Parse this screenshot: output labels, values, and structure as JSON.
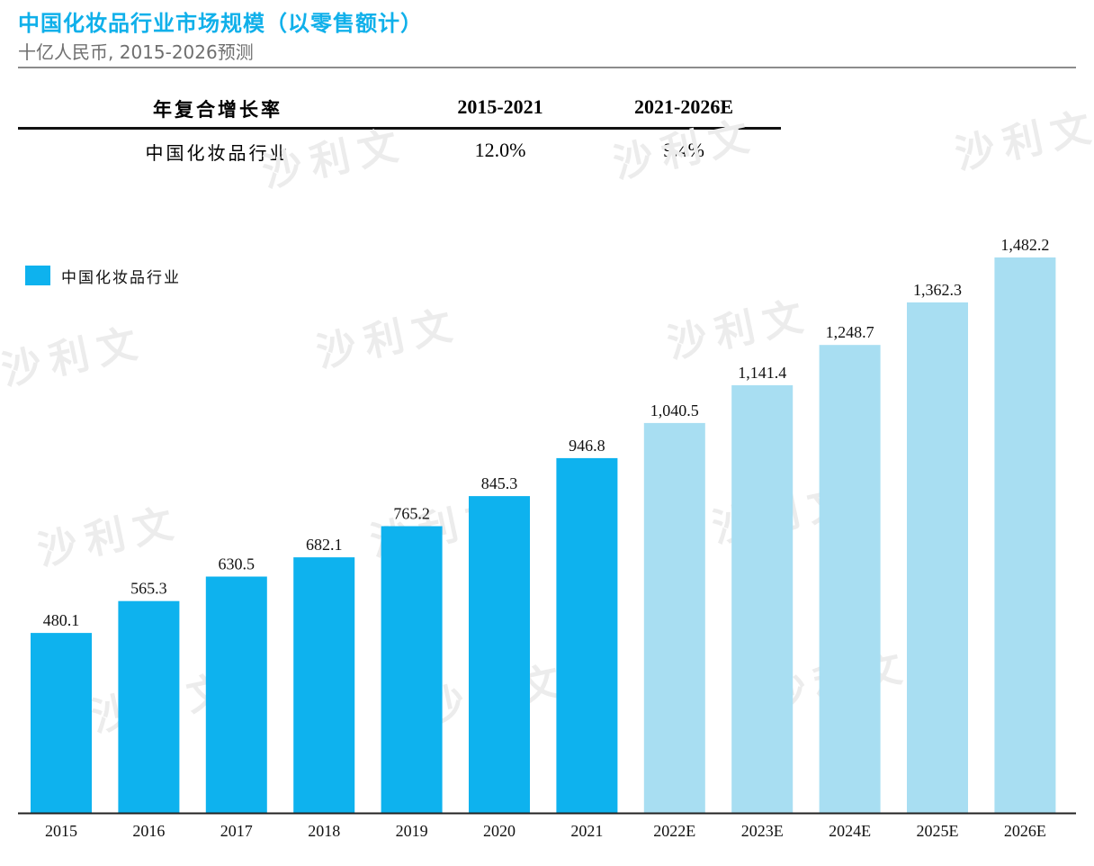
{
  "header": {
    "title": "中国化妆品行业市场规模（以零售额计）",
    "subtitle": "十亿人民币, 2015-2026预测"
  },
  "cagr_table": {
    "header_label": "年复合增长率",
    "col1": "2015-2021",
    "col2": "2021-2026E",
    "row_label": "中国化妆品行业",
    "row_val1": "12.0%",
    "row_val2": "9.4%"
  },
  "legend": {
    "label": "中国化妆品行业"
  },
  "watermark": {
    "text": "沙利文"
  },
  "colors": {
    "title": "#10b0ea",
    "actual": "#0eb2ee",
    "forecast": "#a8def2",
    "axis": "#222222"
  },
  "chart_data": {
    "type": "bar",
    "categories": [
      "2015",
      "2016",
      "2017",
      "2018",
      "2019",
      "2020",
      "2021",
      "2022E",
      "2023E",
      "2024E",
      "2025E",
      "2026E"
    ],
    "values": [
      480.1,
      565.3,
      630.5,
      682.1,
      765.2,
      845.3,
      946.8,
      1040.5,
      1141.4,
      1248.7,
      1362.3,
      1482.2
    ],
    "labels": [
      "480.1",
      "565.3",
      "630.5",
      "682.1",
      "765.2",
      "845.3",
      "946.8",
      "1,040.5",
      "1,141.4",
      "1,248.7",
      "1,362.3",
      "1,482.2"
    ],
    "forecast_from_index": 7,
    "series": [
      {
        "name": "中国化妆品行业"
      }
    ],
    "title": "中国化妆品行业市场规模（以零售额计）",
    "xlabel": "",
    "ylabel": "",
    "ylim": [
      0,
      1482.2
    ],
    "grid": false,
    "legend_position": "top-left"
  }
}
